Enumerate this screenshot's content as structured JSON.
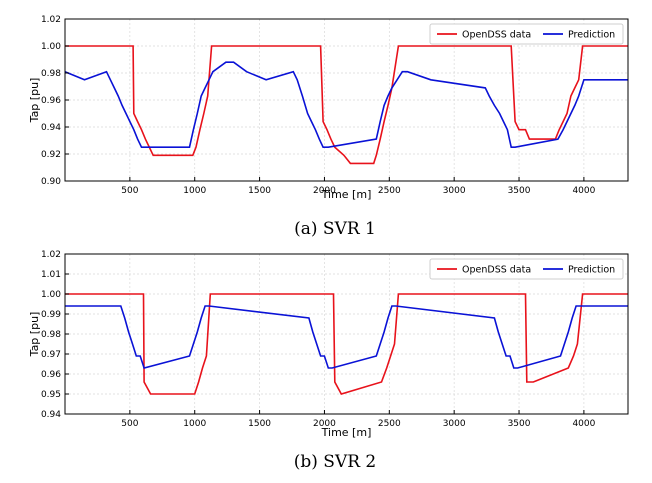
{
  "colors": {
    "opendss": "#e8121b",
    "prediction": "#0a12d6",
    "grid": "#d9d9d9",
    "axis": "#000000",
    "text": "#000000"
  },
  "chart_data": [
    {
      "type": "line",
      "caption": "(a)  SVR  1",
      "xlabel": "Time [m]",
      "ylabel": "Tap [pu]",
      "xlim": [
        0,
        4340
      ],
      "ylim": [
        0.9,
        1.02
      ],
      "xticks": [
        500,
        1000,
        1500,
        2000,
        2500,
        3000,
        3500,
        4000
      ],
      "xtick_labels": [
        "500",
        "1000",
        "1500",
        "2000",
        "2500",
        "3000",
        "3500",
        "4000"
      ],
      "yticks": [
        0.9,
        0.92,
        0.94,
        0.96,
        0.98,
        1.0,
        1.02
      ],
      "ytick_labels": [
        "0.90",
        "0.92",
        "0.94",
        "0.96",
        "0.98",
        "1.00",
        "1.02"
      ],
      "grid": true,
      "legend": "top-right",
      "series": [
        {
          "name": "OpenDSS data",
          "color": "#e8121b",
          "x": [
            0,
            525,
            530,
            560,
            590,
            620,
            680,
            985,
            1010,
            1040,
            1070,
            1100,
            1130,
            1970,
            1990,
            2020,
            2050,
            2080,
            2150,
            2200,
            2380,
            2400,
            2430,
            2460,
            2490,
            2520,
            2570,
            2600,
            3440,
            3470,
            3500,
            3550,
            3580,
            3780,
            3810,
            3840,
            3870,
            3900,
            3930,
            3960,
            3990,
            4020,
            4340
          ],
          "y": [
            1.0,
            1.0,
            0.95,
            0.944,
            0.938,
            0.931,
            0.919,
            0.919,
            0.925,
            0.938,
            0.95,
            0.963,
            1.0,
            1.0,
            0.944,
            0.938,
            0.931,
            0.925,
            0.919,
            0.913,
            0.913,
            0.919,
            0.931,
            0.944,
            0.956,
            0.969,
            1.0,
            1.0,
            1.0,
            0.944,
            0.938,
            0.938,
            0.931,
            0.931,
            0.938,
            0.944,
            0.95,
            0.963,
            0.969,
            0.975,
            1.0,
            1.0,
            1.0
          ]
        },
        {
          "name": "Prediction",
          "color": "#0a12d6",
          "x": [
            0,
            150,
            320,
            350,
            380,
            410,
            440,
            470,
            500,
            530,
            560,
            590,
            960,
            990,
            1020,
            1050,
            1080,
            1110,
            1140,
            1240,
            1300,
            1400,
            1550,
            1760,
            1790,
            1830,
            1870,
            1900,
            1930,
            1960,
            1990,
            2030,
            2400,
            2430,
            2460,
            2490,
            2520,
            2560,
            2600,
            2640,
            2820,
            3240,
            3270,
            3310,
            3350,
            3380,
            3410,
            3440,
            3470,
            3800,
            3840,
            3870,
            3900,
            3930,
            3960,
            4000,
            4340
          ],
          "y": [
            0.981,
            0.975,
            0.981,
            0.975,
            0.969,
            0.963,
            0.956,
            0.95,
            0.944,
            0.938,
            0.931,
            0.925,
            0.925,
            0.938,
            0.95,
            0.963,
            0.969,
            0.975,
            0.981,
            0.988,
            0.988,
            0.981,
            0.975,
            0.981,
            0.975,
            0.963,
            0.95,
            0.944,
            0.938,
            0.931,
            0.925,
            0.925,
            0.931,
            0.944,
            0.956,
            0.963,
            0.969,
            0.975,
            0.981,
            0.981,
            0.975,
            0.969,
            0.963,
            0.956,
            0.95,
            0.944,
            0.938,
            0.925,
            0.925,
            0.931,
            0.938,
            0.944,
            0.95,
            0.956,
            0.963,
            0.975,
            0.975
          ]
        }
      ]
    },
    {
      "type": "line",
      "caption": "(b)  SVR  2",
      "xlabel": "Time [m]",
      "ylabel": "Tap [pu]",
      "xlim": [
        0,
        4340
      ],
      "ylim": [
        0.94,
        1.02
      ],
      "xticks": [
        500,
        1000,
        1500,
        2000,
        2500,
        3000,
        3500,
        4000
      ],
      "xtick_labels": [
        "500",
        "1000",
        "1500",
        "2000",
        "2500",
        "3000",
        "3500",
        "4000"
      ],
      "yticks": [
        0.94,
        0.95,
        0.96,
        0.97,
        0.98,
        0.99,
        1.0,
        1.01,
        1.02
      ],
      "ytick_labels": [
        "0.94",
        "0.95",
        "0.96",
        "0.97",
        "0.98",
        "0.99",
        "1.00",
        "1.01",
        "1.02"
      ],
      "grid": true,
      "legend": "top-right",
      "series": [
        {
          "name": "OpenDSS data",
          "color": "#e8121b",
          "x": [
            0,
            605,
            610,
            660,
            1000,
            1030,
            1060,
            1090,
            1120,
            2070,
            2080,
            2130,
            2440,
            2480,
            2510,
            2540,
            2570,
            3550,
            3560,
            3610,
            3880,
            3920,
            3950,
            3990,
            4340
          ],
          "y": [
            1.0,
            1.0,
            0.956,
            0.95,
            0.95,
            0.956,
            0.963,
            0.969,
            1.0,
            1.0,
            0.956,
            0.95,
            0.956,
            0.963,
            0.969,
            0.975,
            1.0,
            1.0,
            0.956,
            0.956,
            0.963,
            0.969,
            0.975,
            1.0,
            1.0
          ]
        },
        {
          "name": "Prediction",
          "color": "#0a12d6",
          "x": [
            0,
            430,
            460,
            490,
            520,
            550,
            580,
            610,
            960,
            990,
            1020,
            1050,
            1080,
            1110,
            1880,
            1910,
            1940,
            1970,
            2000,
            2030,
            2060,
            2400,
            2430,
            2460,
            2490,
            2520,
            2550,
            3310,
            3340,
            3370,
            3400,
            3430,
            3460,
            3490,
            3820,
            3850,
            3880,
            3910,
            3940,
            3970,
            4340
          ],
          "y": [
            0.994,
            0.994,
            0.988,
            0.981,
            0.975,
            0.969,
            0.969,
            0.963,
            0.969,
            0.975,
            0.981,
            0.988,
            0.994,
            0.994,
            0.988,
            0.981,
            0.975,
            0.969,
            0.969,
            0.963,
            0.963,
            0.969,
            0.975,
            0.981,
            0.988,
            0.994,
            0.994,
            0.988,
            0.981,
            0.975,
            0.969,
            0.969,
            0.963,
            0.963,
            0.969,
            0.975,
            0.981,
            0.988,
            0.994,
            0.994,
            0.994
          ]
        }
      ]
    }
  ]
}
